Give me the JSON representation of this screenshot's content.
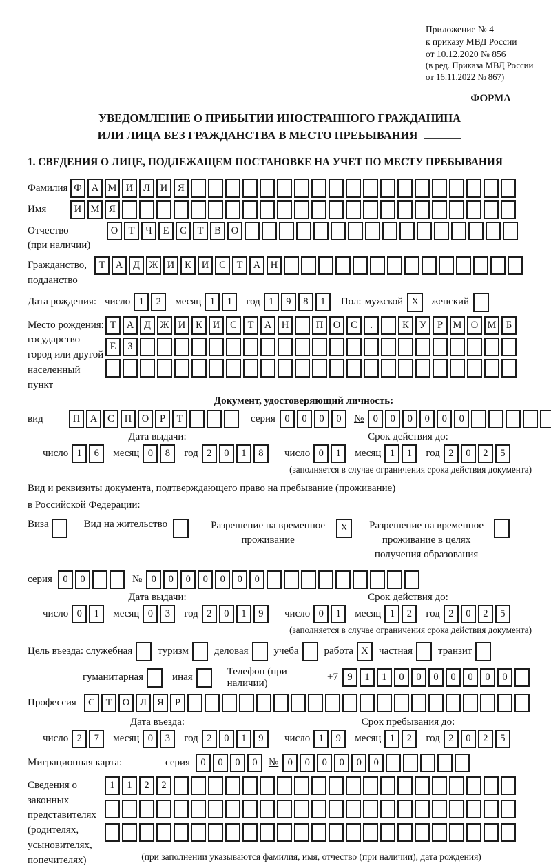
{
  "page": {
    "appendix": [
      "Приложение № 4",
      "к приказу МВД России",
      "от 10.12.2020 № 856"
    ],
    "amendment": [
      "(в ред. Приказа МВД России",
      "от 16.11.2022 № 867)"
    ],
    "form_label": "ФОРМА",
    "title1": "УВЕДОМЛЕНИЕ О ПРИБЫТИИ ИНОСТРАННОГО ГРАЖДАНИНА",
    "title2": "ИЛИ ЛИЦА БЕЗ ГРАЖДАНСТВА В МЕСТО ПРЕБЫВАНИЯ",
    "section1_heading": "1. СВЕДЕНИЯ О ЛИЦЕ, ПОДЛЕЖАЩЕМ ПОСТАНОВКЕ НА УЧЕТ ПО МЕСТУ ПРЕБЫВАНИЯ"
  },
  "surname": {
    "label": "Фамилия",
    "value": "ФАМИЛИЯ",
    "length": 26
  },
  "given_name": {
    "label": "Имя",
    "value": "ИМЯ",
    "length": 26
  },
  "patronymic": {
    "label1": "Отчество",
    "label2": "(при наличии)",
    "value": "ОТЧЕСТВО",
    "length": 24
  },
  "citizenship": {
    "label1": "Гражданство,",
    "label2": "подданство",
    "value": "ТАДЖИКИСТАН",
    "length": 25
  },
  "birth_date": {
    "label": "Дата рождения:",
    "day_label": "число",
    "day": {
      "value": "12",
      "length": 2
    },
    "month_label": "месяц",
    "month": {
      "value": "11",
      "length": 2
    },
    "year_label": "год",
    "year": {
      "value": "1981",
      "length": 4
    },
    "sex_label": "Пол:",
    "male_label": "мужской",
    "male_checked": "X",
    "female_label": "женский",
    "female_checked": ""
  },
  "birth_place": {
    "label1": "Место рождения:",
    "label2": "государство",
    "label3": "город или другой",
    "label4": "населенный пункт",
    "row1": {
      "value": "ТАДЖИКИСТАН ПОС. КУРМОМБ",
      "length": 24
    },
    "row2": {
      "value": "ЕЗ",
      "length": 24
    },
    "row3": {
      "value": "",
      "length": 24
    }
  },
  "identity_doc": {
    "heading": "Документ, удостоверяющий личность:",
    "kind_label": "вид",
    "kind": {
      "value": "ПАСПОРТ",
      "length": 10
    },
    "series_label": "серия",
    "series": {
      "value": "0000",
      "length": 4
    },
    "number_label": "№",
    "number": {
      "value": "000000",
      "length": 11
    },
    "issue": {
      "heading": "Дата выдачи:",
      "day_label": "число",
      "day": {
        "value": "16",
        "length": 2
      },
      "month_label": "месяц",
      "month": {
        "value": "08",
        "length": 2
      },
      "year_label": "год",
      "year": {
        "value": "2018",
        "length": 4
      }
    },
    "expiry": {
      "heading": "Срок действия до:",
      "day_label": "число",
      "day": {
        "value": "01",
        "length": 2
      },
      "month_label": "месяц",
      "month": {
        "value": "11",
        "length": 2
      },
      "year_label": "год",
      "year": {
        "value": "2025",
        "length": 4
      }
    },
    "expiry_note": "(заполняется в случае ограничения срока действия документа)"
  },
  "residence_doc": {
    "line1": "Вид и реквизиты документа, подтверждающего право на пребывание (проживание)",
    "line2": "в Российской Федерации:",
    "visa_label": "Виза",
    "visa_checked": "",
    "residence_permit_label": "Вид на жительство",
    "residence_permit_checked": "",
    "temp_permit_line1": "Разрешение на временное",
    "temp_permit_line2": "проживание",
    "temp_permit_checked": "X",
    "edu_permit_line1": "Разрешение на временное",
    "edu_permit_line2": "проживание в целях",
    "edu_permit_line3": "получения образования",
    "edu_permit_checked": "",
    "series_label": "серия",
    "series": {
      "value": "00",
      "length": 4
    },
    "number_label": "№",
    "number": {
      "value": "0000000",
      "length": 16
    },
    "issue": {
      "heading": "Дата выдачи:",
      "day_label": "число",
      "day": {
        "value": "01",
        "length": 2
      },
      "month_label": "месяц",
      "month": {
        "value": "03",
        "length": 2
      },
      "year_label": "год",
      "year": {
        "value": "2019",
        "length": 4
      }
    },
    "expiry": {
      "heading": "Срок действия до:",
      "day_label": "число",
      "day": {
        "value": "01",
        "length": 2
      },
      "month_label": "месяц",
      "month": {
        "value": "12",
        "length": 2
      },
      "year_label": "год",
      "year": {
        "value": "2025",
        "length": 4
      }
    },
    "expiry_note": "(заполняется в случае ограничения срока действия документа)"
  },
  "visit_purpose": {
    "label": "Цель въезда: служебная",
    "official_checked": "",
    "tourism_label": "туризм",
    "tourism_checked": "",
    "business_label": "деловая",
    "business_checked": "",
    "study_label": "учеба",
    "study_checked": "",
    "work_label": "работа",
    "work_checked": "X",
    "private_label": "частная",
    "private_checked": "",
    "transit_label": "транзит",
    "transit_checked": "",
    "humanitarian_label": "гуманитарная",
    "humanitarian_checked": "",
    "other_label": "иная",
    "other_checked": ""
  },
  "phone": {
    "label": "Телефон (при наличии)",
    "prefix": "+7",
    "value": "9110000000",
    "length": 11
  },
  "profession": {
    "label": "Профессия",
    "value": "СТОЛЯР",
    "length": 26
  },
  "entry_date": {
    "heading": "Дата въезда:",
    "day_label": "число",
    "day": {
      "value": "27",
      "length": 2
    },
    "month_label": "месяц",
    "month": {
      "value": "03",
      "length": 2
    },
    "year_label": "год",
    "year": {
      "value": "2019",
      "length": 4
    }
  },
  "stay_until": {
    "heading": "Срок пребывания до:",
    "day_label": "число",
    "day": {
      "value": "19",
      "length": 2
    },
    "month_label": "месяц",
    "month": {
      "value": "12",
      "length": 2
    },
    "year_label": "год",
    "year": {
      "value": "2025",
      "length": 4
    }
  },
  "migration_card": {
    "label": "Миграционная карта:",
    "series_label": "серия",
    "series": {
      "value": "0000",
      "length": 4
    },
    "number_label": "№",
    "number": {
      "value": "000000",
      "length": 11
    }
  },
  "representatives": {
    "label1": "Сведения о",
    "label2": "законных",
    "label3": "представителях",
    "label4": "(родителях,",
    "label5": "усыновителях,",
    "label6": "попечителях)",
    "row1": {
      "value": "1122",
      "length": 24
    },
    "row2": {
      "value": "",
      "length": 24
    },
    "row3": {
      "value": "",
      "length": 24
    },
    "note": "(при заполнении указываются фамилия, имя, отчество (при наличии), дата рождения)"
  }
}
